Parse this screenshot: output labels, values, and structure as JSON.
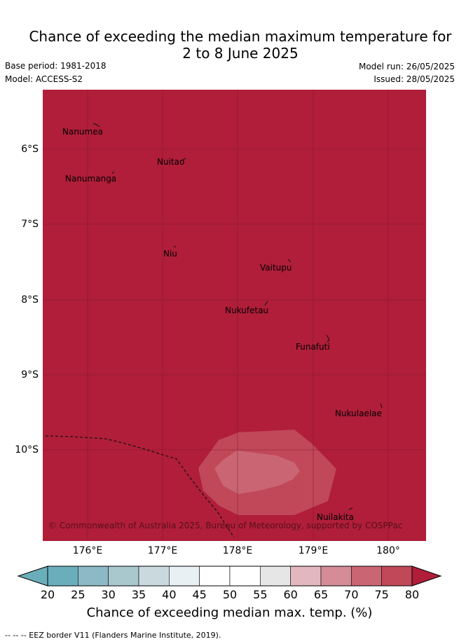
{
  "title_line1": "Chance of exceeding the median maximum temperature for",
  "title_line2": "2 to 8 June 2025",
  "base_period": "Base period: 1981-2018",
  "model": "Model: ACCESS-S2",
  "model_run": "Model run: 26/05/2025",
  "issued": "Issued: 28/05/2025",
  "copyright": "© Commonwealth of Australia 2025, Bureau of Meteorology, supported by COSPPac",
  "lat_labels": [
    "6°S",
    "7°S",
    "8°S",
    "9°S",
    "10°S"
  ],
  "lon_labels": [
    "176°E",
    "177°E",
    "178°E",
    "179°E",
    "180°"
  ],
  "places": [
    {
      "name": "Nanumea"
    },
    {
      "name": "Nuitao"
    },
    {
      "name": "Nanumanga"
    },
    {
      "name": "Niu"
    },
    {
      "name": "Vaitupu"
    },
    {
      "name": "Nukufetau"
    },
    {
      "name": "Funafuti"
    },
    {
      "name": "Nukulaelae"
    },
    {
      "name": "Nuilakita"
    }
  ],
  "colorbar": {
    "ticks": [
      "20",
      "25",
      "30",
      "35",
      "40",
      "45",
      "50",
      "55",
      "60",
      "65",
      "70",
      "75",
      "80"
    ],
    "colors": [
      "#6aaebb",
      "#8cb9c5",
      "#a9c8ce",
      "#c9d9de",
      "#e8f0f3",
      "#ffffff",
      "#ffffff",
      "#e6e6e6",
      "#e2b7bf",
      "#d58c97",
      "#ca6574",
      "#c04858"
    ],
    "under_color": "#5aa4b2",
    "over_color": "#b01e3a",
    "label": "Chance of exceeding median max. temp. (%)"
  },
  "map_colors": {
    "dominant": "#b01e3a",
    "mid_zone": "#c04858",
    "inner_zone": "#ca6574"
  },
  "footnote": "-- -- -- EEZ border V11 (Flanders Marine Institute, 2019)."
}
